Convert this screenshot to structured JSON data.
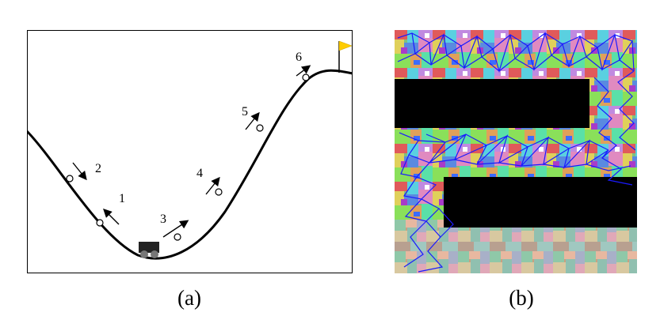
{
  "panel_a": {
    "caption": "(a)",
    "points": [
      {
        "label": "1",
        "direction": "up-left"
      },
      {
        "label": "2",
        "direction": "down-right"
      },
      {
        "label": "3",
        "direction": "up-right"
      },
      {
        "label": "4",
        "direction": "up-right"
      },
      {
        "label": "5",
        "direction": "up-right"
      },
      {
        "label": "6",
        "direction": "up-right"
      }
    ],
    "icons": [
      "mountain-curve",
      "car-icon",
      "goal-flag-icon"
    ],
    "colors": {
      "curve": "#000000",
      "flag": "#ffcc00",
      "car": "#222222"
    }
  },
  "panel_b": {
    "caption": "(b)",
    "icons": [
      "colored-region-map",
      "obstacle-block",
      "graph-network"
    ],
    "colors": {
      "graph": "#1a1aff",
      "obstacle": "#000000"
    }
  }
}
